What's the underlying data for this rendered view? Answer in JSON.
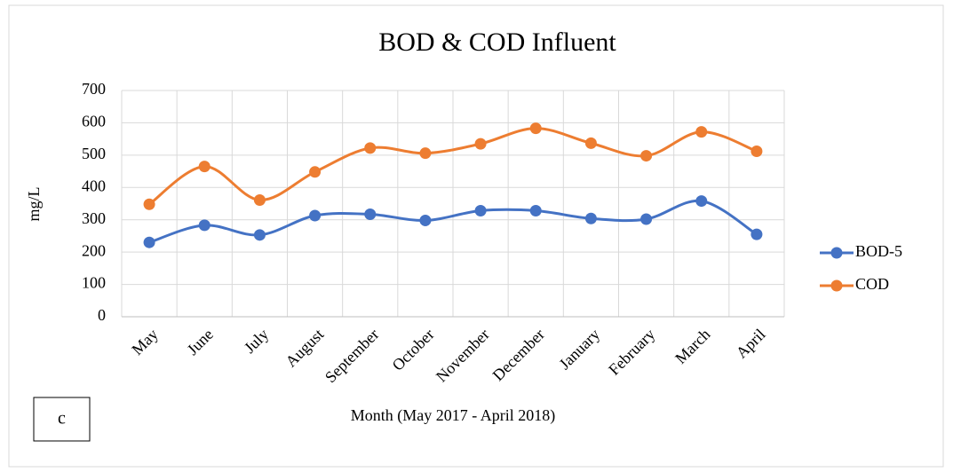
{
  "chart_data": {
    "type": "line",
    "title": "BOD & COD Influent",
    "xlabel": "Month (May 2017 - April 2018)",
    "ylabel": "mg/L",
    "annotation": "c",
    "categories": [
      "May",
      "June",
      "July",
      "August",
      "September",
      "October",
      "November",
      "December",
      "January",
      "February",
      "March",
      "April"
    ],
    "series": [
      {
        "name": "BOD-5",
        "color": "#4472c4",
        "values": [
          230,
          283,
          253,
          313,
          317,
          298,
          328,
          328,
          304,
          302,
          358,
          255
        ]
      },
      {
        "name": "COD",
        "color": "#ed7d31",
        "values": [
          348,
          465,
          361,
          448,
          522,
          506,
          535,
          583,
          537,
          498,
          572,
          512
        ]
      }
    ],
    "ylim": [
      0,
      700
    ],
    "yticks": [
      0,
      100,
      200,
      300,
      400,
      500,
      600,
      700
    ],
    "grid": true,
    "smooth": true,
    "legend": "right"
  }
}
